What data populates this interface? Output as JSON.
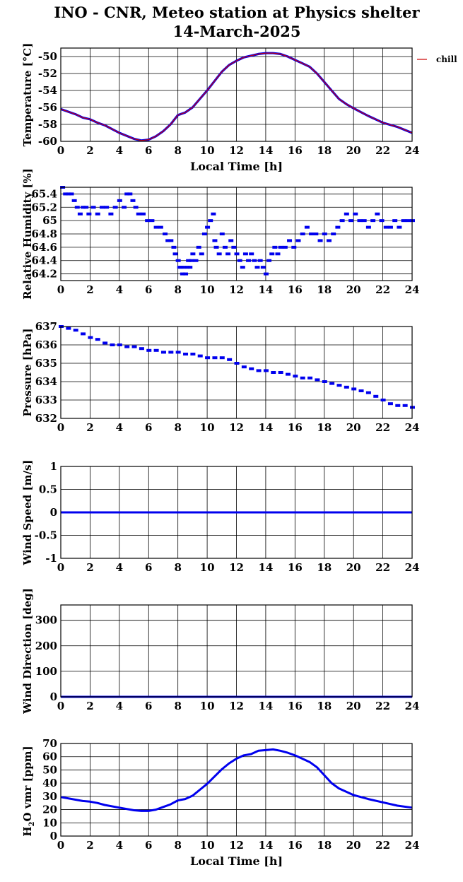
{
  "title": {
    "line1": "INO - CNR, Meteo station at Physics shelter",
    "line2": "14-March-2025"
  },
  "chart_data": [
    {
      "type": "line",
      "ylabel": "Temperature [°C]",
      "xlabel": "Local Time [h]",
      "xlim": [
        0,
        24
      ],
      "ylim": [
        -60,
        -49
      ],
      "yticks": [
        -60,
        -58,
        -56,
        -54,
        -52,
        -50
      ],
      "xticks": [
        0,
        2,
        4,
        6,
        8,
        10,
        12,
        14,
        16,
        18,
        20,
        22,
        24
      ],
      "grid": true,
      "legend": {
        "position": "right",
        "entries": [
          {
            "name": "chill",
            "color": "#cc0000"
          }
        ]
      },
      "series": [
        {
          "name": "",
          "color": "#0000ee",
          "x": [
            0,
            1,
            1.5,
            2,
            2.5,
            3,
            4,
            5,
            5.5,
            6,
            6.5,
            7,
            7.5,
            8,
            8.5,
            9,
            9.5,
            10,
            10.5,
            11,
            11.5,
            12,
            12.5,
            13,
            13.5,
            14,
            14.5,
            15,
            15.5,
            16,
            16.5,
            17,
            17.5,
            18,
            18.5,
            19,
            19.5,
            20,
            21,
            22,
            23,
            24
          ],
          "y": [
            -56.2,
            -56.8,
            -57.2,
            -57.4,
            -57.8,
            -58.1,
            -59.0,
            -59.7,
            -59.9,
            -59.8,
            -59.4,
            -58.8,
            -58.0,
            -56.9,
            -56.6,
            -56.0,
            -55.0,
            -54.0,
            -52.9,
            -51.8,
            -51.0,
            -50.5,
            -50.1,
            -49.9,
            -49.7,
            -49.6,
            -49.6,
            -49.7,
            -50.0,
            -50.4,
            -50.8,
            -51.2,
            -52.0,
            -53.0,
            -54.0,
            -55.0,
            -55.6,
            -56.1,
            -57.0,
            -57.8,
            -58.3,
            -59.0
          ]
        },
        {
          "name": "chill",
          "color": "#cc0000",
          "x": [
            0,
            1,
            1.5,
            2,
            2.5,
            3,
            4,
            5,
            5.5,
            6,
            6.5,
            7,
            7.5,
            8,
            8.5,
            9,
            9.5,
            10,
            10.5,
            11,
            11.5,
            12,
            12.5,
            13,
            13.5,
            14,
            14.5,
            15,
            15.5,
            16,
            16.5,
            17,
            17.5,
            18,
            18.5,
            19,
            19.5,
            20,
            21,
            22,
            23,
            24
          ],
          "y": [
            -56.2,
            -56.8,
            -57.2,
            -57.4,
            -57.8,
            -58.1,
            -59.0,
            -59.7,
            -59.9,
            -59.8,
            -59.4,
            -58.8,
            -58.0,
            -56.9,
            -56.6,
            -56.0,
            -55.0,
            -54.0,
            -52.9,
            -51.8,
            -51.0,
            -50.5,
            -50.1,
            -49.9,
            -49.7,
            -49.6,
            -49.6,
            -49.7,
            -50.0,
            -50.4,
            -50.8,
            -51.2,
            -52.0,
            -53.0,
            -54.0,
            -55.0,
            -55.6,
            -56.1,
            -57.0,
            -57.8,
            -58.3,
            -59.0
          ]
        }
      ]
    },
    {
      "type": "scatter",
      "ylabel": "Relative Humidity [%]",
      "xlabel": "",
      "xlim": [
        0,
        24
      ],
      "ylim": [
        64.1,
        65.5
      ],
      "yticks": [
        64.2,
        64.4,
        64.6,
        64.8,
        65,
        65.2,
        65.4
      ],
      "ytick_labels": [
        "64.2",
        "64.4",
        "64.6",
        "64.8",
        "65",
        "65.2",
        "65.4"
      ],
      "xticks": [
        0,
        2,
        4,
        6,
        8,
        10,
        12,
        14,
        16,
        18,
        20,
        22,
        24
      ],
      "grid": true,
      "series": [
        {
          "name": "",
          "color": "#0000ee",
          "x": [
            0.1,
            0.3,
            0.5,
            0.7,
            0.9,
            1.1,
            1.3,
            1.5,
            1.7,
            1.9,
            2.2,
            2.5,
            2.8,
            3.1,
            3.4,
            3.7,
            4.0,
            4.3,
            4.5,
            4.7,
            4.9,
            5.1,
            5.3,
            5.6,
            5.9,
            6.2,
            6.5,
            6.8,
            7.1,
            7.3,
            7.5,
            7.7,
            7.8,
            8.0,
            8.1,
            8.2,
            8.3,
            8.4,
            8.5,
            8.6,
            8.7,
            8.8,
            8.9,
            9.0,
            9.2,
            9.4,
            9.6,
            9.8,
            10.0,
            10.2,
            10.4,
            10.5,
            10.6,
            10.8,
            11.0,
            11.2,
            11.4,
            11.6,
            11.8,
            12.0,
            12.2,
            12.4,
            12.6,
            12.8,
            13.0,
            13.2,
            13.4,
            13.6,
            13.8,
            14.0,
            14.2,
            14.4,
            14.6,
            14.8,
            15.0,
            15.3,
            15.6,
            15.9,
            16.2,
            16.5,
            16.8,
            17.1,
            17.4,
            17.7,
            18.0,
            18.3,
            18.6,
            18.9,
            19.2,
            19.5,
            19.8,
            20.1,
            20.4,
            20.7,
            21.0,
            21.3,
            21.6,
            21.9,
            22.2,
            22.5,
            22.8,
            23.1,
            23.4,
            23.7,
            24.0
          ],
          "y": [
            65.5,
            65.4,
            65.4,
            65.4,
            65.3,
            65.2,
            65.1,
            65.2,
            65.2,
            65.1,
            65.2,
            65.1,
            65.2,
            65.2,
            65.1,
            65.2,
            65.3,
            65.2,
            65.4,
            65.4,
            65.3,
            65.2,
            65.1,
            65.1,
            65.0,
            65.0,
            64.9,
            64.9,
            64.8,
            64.7,
            64.7,
            64.6,
            64.5,
            64.4,
            64.3,
            64.3,
            64.2,
            64.3,
            64.2,
            64.3,
            64.4,
            64.3,
            64.4,
            64.5,
            64.4,
            64.6,
            64.5,
            64.8,
            64.9,
            65.0,
            65.1,
            64.7,
            64.6,
            64.5,
            64.8,
            64.6,
            64.5,
            64.7,
            64.6,
            64.5,
            64.4,
            64.3,
            64.5,
            64.4,
            64.5,
            64.4,
            64.3,
            64.4,
            64.3,
            64.2,
            64.4,
            64.5,
            64.6,
            64.5,
            64.6,
            64.6,
            64.7,
            64.6,
            64.7,
            64.8,
            64.9,
            64.8,
            64.8,
            64.7,
            64.8,
            64.7,
            64.8,
            64.9,
            65.0,
            65.1,
            65.0,
            65.1,
            65.0,
            65.0,
            64.9,
            65.0,
            65.1,
            65.0,
            64.9,
            64.9,
            65.0,
            64.9,
            65.0,
            65.0,
            65.0
          ]
        }
      ]
    },
    {
      "type": "scatter",
      "ylabel": "Pressure [hPa]",
      "xlabel": "",
      "xlim": [
        0,
        24
      ],
      "ylim": [
        632,
        637
      ],
      "yticks": [
        632,
        633,
        634,
        635,
        636,
        637
      ],
      "xticks": [
        0,
        2,
        4,
        6,
        8,
        10,
        12,
        14,
        16,
        18,
        20,
        22,
        24
      ],
      "grid": true,
      "series": [
        {
          "name": "",
          "color": "#0000ee",
          "x": [
            0,
            0.5,
            1,
            1.5,
            2,
            2.5,
            3,
            3.5,
            4,
            4.5,
            5,
            5.5,
            6,
            6.5,
            7,
            7.5,
            8,
            8.5,
            9,
            9.5,
            10,
            10.5,
            11,
            11.5,
            12,
            12.5,
            13,
            13.5,
            14,
            14.5,
            15,
            15.5,
            16,
            16.5,
            17,
            17.5,
            18,
            18.5,
            19,
            19.5,
            20,
            20.5,
            21,
            21.5,
            22,
            22.5,
            23,
            23.5,
            24
          ],
          "y": [
            637.0,
            636.9,
            636.8,
            636.6,
            636.4,
            636.3,
            636.1,
            636.0,
            636.0,
            635.9,
            635.9,
            635.8,
            635.7,
            635.7,
            635.6,
            635.6,
            635.6,
            635.5,
            635.5,
            635.4,
            635.3,
            635.3,
            635.3,
            635.2,
            635.0,
            634.8,
            634.7,
            634.6,
            634.6,
            634.5,
            634.5,
            634.4,
            634.3,
            634.2,
            634.2,
            634.1,
            634.0,
            633.9,
            633.8,
            633.7,
            633.6,
            633.5,
            633.4,
            633.2,
            633.0,
            632.8,
            632.7,
            632.7,
            632.6
          ]
        }
      ]
    },
    {
      "type": "line",
      "ylabel": "Wind Speed [m/s]",
      "xlabel": "",
      "xlim": [
        0,
        24
      ],
      "ylim": [
        -1,
        1
      ],
      "yticks": [
        -1,
        -0.5,
        0,
        0.5,
        1
      ],
      "xticks": [
        0,
        2,
        4,
        6,
        8,
        10,
        12,
        14,
        16,
        18,
        20,
        22,
        24
      ],
      "grid": true,
      "series": [
        {
          "name": "",
          "color": "#0000ee",
          "x": [
            0,
            24
          ],
          "y": [
            0,
            0
          ]
        }
      ]
    },
    {
      "type": "line",
      "ylabel": "Wind Direction [deg]",
      "xlabel": "",
      "xlim": [
        0,
        24
      ],
      "ylim": [
        0,
        360
      ],
      "yticks": [
        0,
        100,
        200,
        300
      ],
      "xticks": [
        0,
        2,
        4,
        6,
        8,
        10,
        12,
        14,
        16,
        18,
        20,
        22,
        24
      ],
      "grid": true,
      "series": [
        {
          "name": "",
          "color": "#0000ee",
          "x": [
            0,
            24
          ],
          "y": [
            0,
            0
          ]
        }
      ]
    },
    {
      "type": "line",
      "ylabel": "H2O vmr [ppm]",
      "xlabel": "Local Time [h]",
      "xlim": [
        0,
        24
      ],
      "ylim": [
        0,
        70
      ],
      "yticks": [
        0,
        10,
        20,
        30,
        40,
        50,
        60,
        70
      ],
      "xticks": [
        0,
        2,
        4,
        6,
        8,
        10,
        12,
        14,
        16,
        18,
        20,
        22,
        24
      ],
      "grid": true,
      "series": [
        {
          "name": "",
          "color": "#0000ee",
          "x": [
            0,
            1,
            1.5,
            2,
            2.5,
            3,
            4,
            5,
            5.5,
            6,
            6.5,
            7,
            7.5,
            8,
            8.5,
            9,
            9.5,
            10,
            10.5,
            11,
            11.5,
            12,
            12.5,
            13,
            13.5,
            14,
            14.5,
            15,
            15.5,
            16,
            16.5,
            17,
            17.5,
            18,
            18.5,
            19,
            19.5,
            20,
            21,
            22,
            23,
            24
          ],
          "y": [
            29.5,
            27.5,
            26.5,
            26.0,
            25.0,
            23.5,
            21.5,
            19.5,
            19.0,
            19.0,
            20.0,
            22.0,
            24.0,
            27.0,
            28.0,
            30.5,
            35.0,
            39.5,
            45.0,
            50.5,
            55.0,
            58.5,
            61.0,
            62.0,
            64.5,
            65.0,
            65.5,
            64.5,
            63.0,
            61.0,
            58.5,
            56.0,
            52.0,
            46.0,
            40.0,
            36.0,
            33.5,
            31.0,
            28.0,
            25.5,
            23.0,
            21.5
          ]
        }
      ]
    }
  ]
}
